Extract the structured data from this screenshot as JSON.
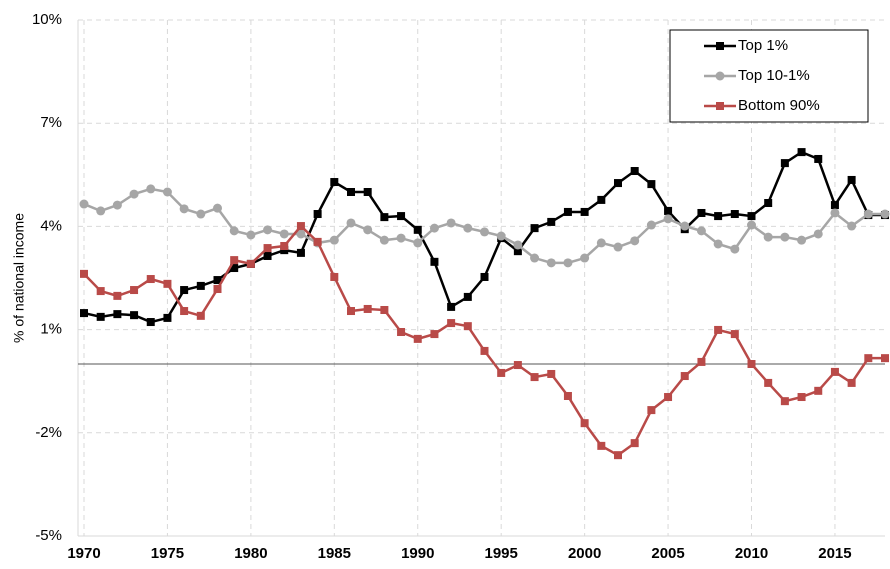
{
  "chart_data": {
    "type": "line",
    "y_label": "% of national income",
    "x": [
      1970,
      1971,
      1972,
      1973,
      1974,
      1975,
      1976,
      1977,
      1978,
      1979,
      1980,
      1981,
      1982,
      1983,
      1984,
      1985,
      1986,
      1987,
      1988,
      1989,
      1990,
      1991,
      1992,
      1993,
      1994,
      1995,
      1996,
      1997,
      1998,
      1999,
      2000,
      2001,
      2002,
      2003,
      2004,
      2005,
      2006,
      2007,
      2008,
      2009,
      2010,
      2011,
      2012,
      2013,
      2014,
      2015,
      2016,
      2017,
      2018
    ],
    "xlim": [
      1970,
      2018
    ],
    "xticks": [
      1970,
      1975,
      1980,
      1985,
      1990,
      1995,
      2000,
      2005,
      2010,
      2015
    ],
    "ylim": [
      -5,
      10
    ],
    "yticks": [
      {
        "value": -5,
        "label": "-5%"
      },
      {
        "value": -2,
        "label": "-2%"
      },
      {
        "value": 1,
        "label": "1%"
      },
      {
        "value": 4,
        "label": "4%"
      },
      {
        "value": 7,
        "label": "7%"
      },
      {
        "value": 10,
        "label": "10%"
      }
    ],
    "grid": true,
    "legend": "top-right",
    "series": [
      {
        "name": "Top 1%",
        "color": "#000000",
        "marker": "square",
        "values": [
          1.48,
          1.37,
          1.45,
          1.42,
          1.22,
          1.34,
          2.15,
          2.27,
          2.44,
          2.79,
          2.91,
          3.14,
          3.31,
          3.23,
          4.36,
          5.29,
          5.0,
          5.0,
          4.27,
          4.3,
          3.9,
          2.97,
          1.66,
          1.95,
          2.53,
          3.66,
          3.28,
          3.95,
          4.13,
          4.42,
          4.42,
          4.77,
          5.26,
          5.61,
          5.23,
          4.45,
          3.92,
          4.39,
          4.3,
          4.36,
          4.3,
          4.68,
          5.84,
          6.16,
          5.96,
          4.62,
          5.35,
          4.33,
          4.33
        ]
      },
      {
        "name": "Top 10-1%",
        "color": "#a6a6a6",
        "marker": "circle",
        "values": [
          4.65,
          4.45,
          4.62,
          4.94,
          5.09,
          5.0,
          4.51,
          4.36,
          4.53,
          3.87,
          3.75,
          3.9,
          3.78,
          3.78,
          3.52,
          3.6,
          4.1,
          3.9,
          3.6,
          3.66,
          3.52,
          3.95,
          4.1,
          3.95,
          3.84,
          3.72,
          3.46,
          3.08,
          2.94,
          2.94,
          3.08,
          3.52,
          3.4,
          3.58,
          4.04,
          4.22,
          4.01,
          3.87,
          3.49,
          3.34,
          4.04,
          3.69,
          3.69,
          3.6,
          3.78,
          4.39,
          4.01,
          4.36,
          4.36
        ]
      },
      {
        "name": "Bottom 90%",
        "color": "#b94a48",
        "marker": "square",
        "values": [
          2.62,
          2.12,
          1.98,
          2.15,
          2.47,
          2.33,
          1.54,
          1.4,
          2.18,
          3.02,
          2.91,
          3.37,
          3.43,
          4.01,
          3.55,
          2.53,
          1.54,
          1.6,
          1.57,
          0.93,
          0.73,
          0.87,
          1.19,
          1.1,
          0.38,
          -0.26,
          -0.03,
          -0.38,
          -0.29,
          -0.93,
          -1.72,
          -2.38,
          -2.65,
          -2.3,
          -1.34,
          -0.96,
          -0.35,
          0.06,
          0.99,
          0.87,
          0,
          -0.55,
          -1.08,
          -0.96,
          -0.78,
          -0.23,
          -0.55,
          0.17,
          0.17
        ]
      }
    ]
  }
}
